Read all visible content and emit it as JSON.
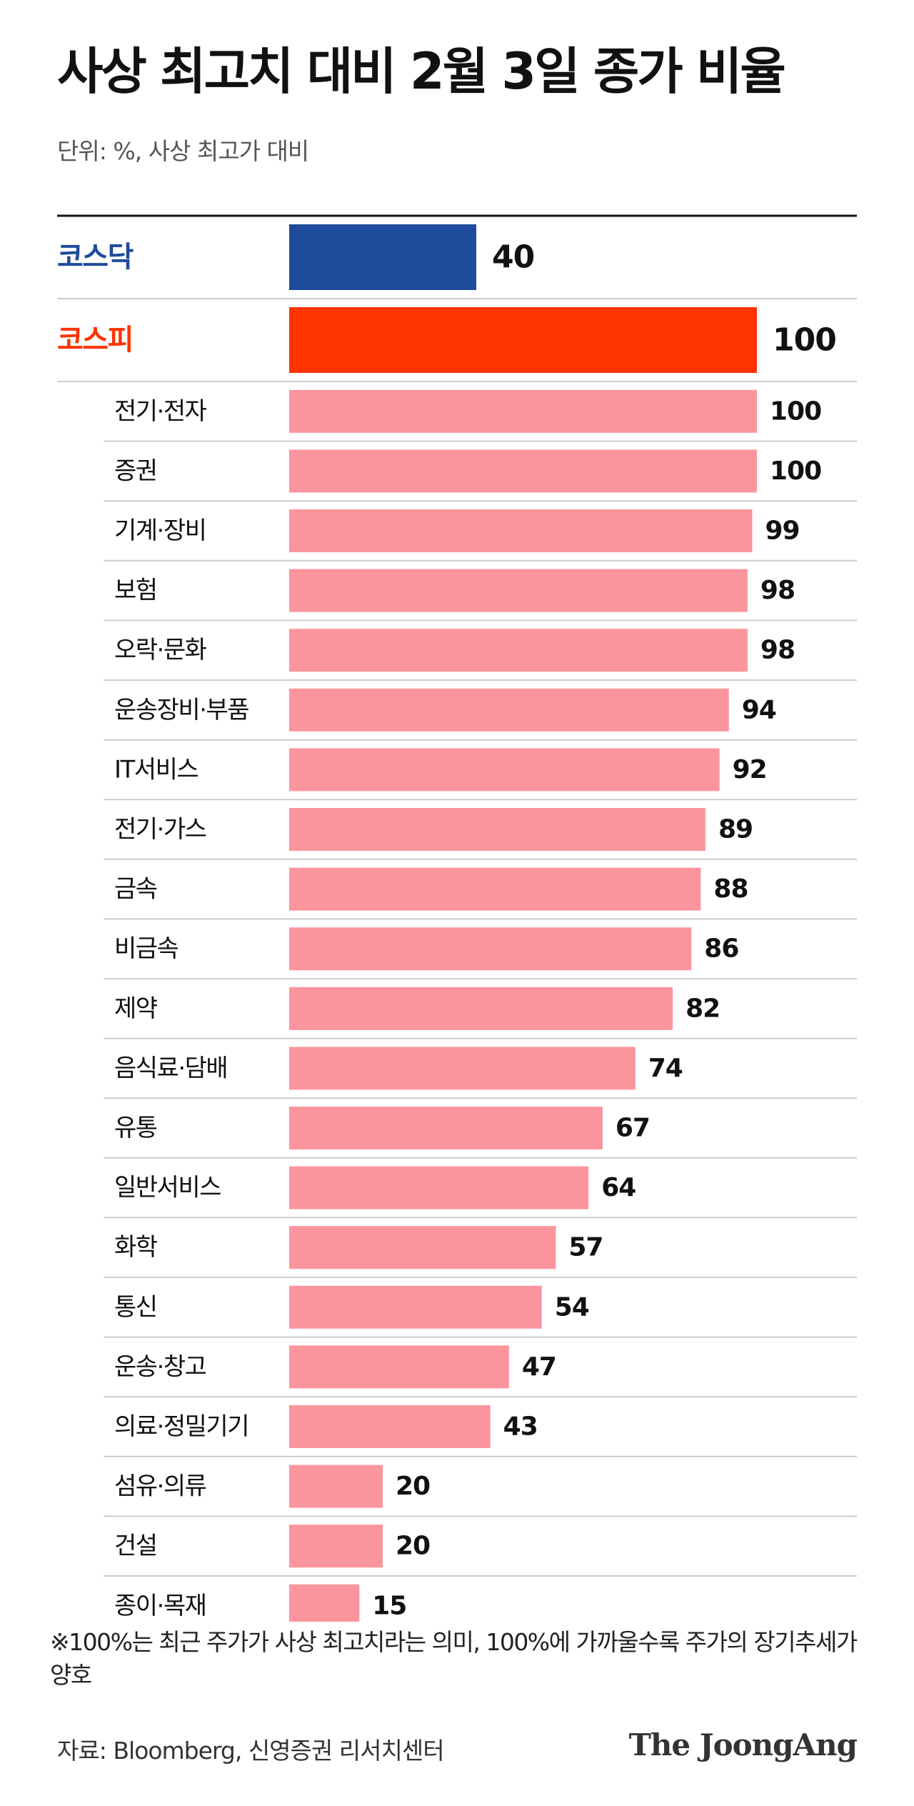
{
  "title": "사상 최고치 대비 2월 3일 종가 비율",
  "subtitle": "단위: %, 사상 최고가 대비",
  "footnote": "※100%는 최근 주가가 사상 최고치라는 의미, 100%에 가까울수록 주가의 장기추세가 양호",
  "source": "자료: Bloomberg, 신영증권 리서치센터",
  "brand": "The JoongAng",
  "colors": {
    "kosdaq": "#1e4b9b",
    "kospi": "#ff3300",
    "sector": "#fb959d",
    "rule": "#111111",
    "divider": "#cccccc"
  },
  "chart_data": {
    "type": "bar",
    "orientation": "horizontal",
    "xlim": [
      0,
      100
    ],
    "categories": [
      "코스닥",
      "코스피",
      "전기·전자",
      "증권",
      "기계·장비",
      "보험",
      "오락·문화",
      "운송장비·부품",
      "IT서비스",
      "전기·가스",
      "금속",
      "비금속",
      "제약",
      "음식료·담배",
      "유통",
      "일반서비스",
      "화학",
      "통신",
      "운송·창고",
      "의료·정밀기기",
      "섬유·의류",
      "건설",
      "종이·목재"
    ],
    "values": [
      40,
      100,
      100,
      100,
      99,
      98,
      98,
      94,
      92,
      89,
      88,
      86,
      82,
      74,
      67,
      64,
      57,
      54,
      47,
      43,
      20,
      20,
      15
    ],
    "grid": false,
    "legend": "none"
  }
}
